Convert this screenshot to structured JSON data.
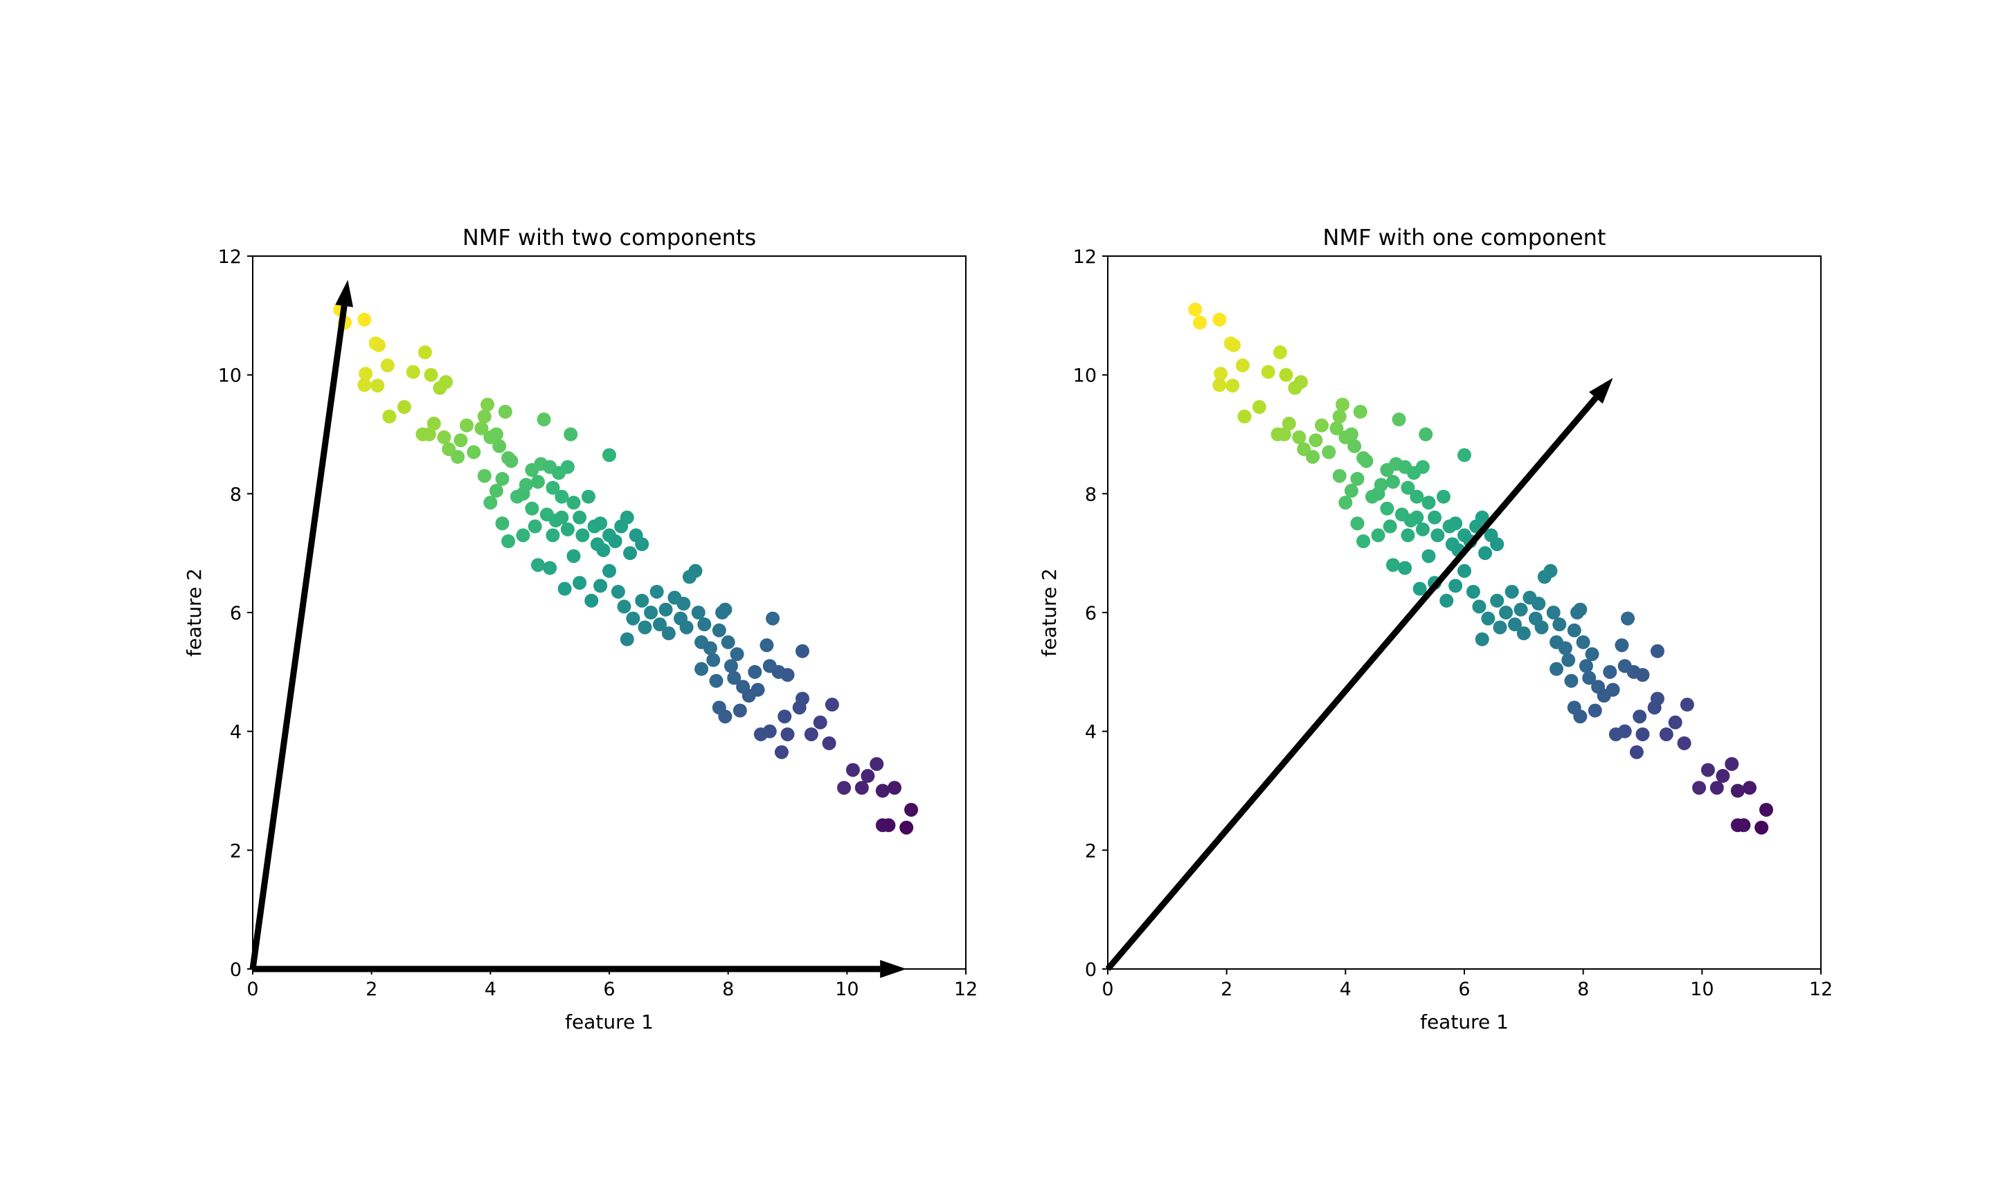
{
  "chart_data": [
    {
      "type": "scatter",
      "title": "NMF with two components",
      "xlabel": "feature 1",
      "ylabel": "feature 2",
      "xlim": [
        0,
        12
      ],
      "ylim": [
        0,
        12
      ],
      "xticks": [
        0,
        2,
        4,
        6,
        8,
        10,
        12
      ],
      "yticks": [
        0,
        2,
        4,
        6,
        8,
        10,
        12
      ],
      "grid": false,
      "colormap": "viridis",
      "arrows": [
        {
          "from": [
            0,
            0
          ],
          "to": [
            1.6,
            11.6
          ]
        },
        {
          "from": [
            0,
            0
          ],
          "to": [
            11.0,
            0
          ]
        }
      ],
      "points": [
        [
          1.47,
          11.1
        ],
        [
          1.55,
          10.88
        ],
        [
          1.88,
          10.93
        ],
        [
          2.07,
          10.53
        ],
        [
          2.12,
          10.5
        ],
        [
          1.9,
          10.02
        ],
        [
          1.88,
          9.83
        ],
        [
          2.1,
          9.82
        ],
        [
          2.27,
          10.16
        ],
        [
          2.55,
          9.46
        ],
        [
          2.3,
          9.3
        ],
        [
          2.9,
          10.38
        ],
        [
          2.7,
          10.05
        ],
        [
          3.0,
          10.0
        ],
        [
          2.86,
          9.0
        ],
        [
          2.97,
          9.0
        ],
        [
          3.15,
          9.78
        ],
        [
          3.25,
          9.88
        ],
        [
          3.05,
          9.18
        ],
        [
          3.22,
          8.95
        ],
        [
          3.3,
          8.75
        ],
        [
          3.45,
          8.62
        ],
        [
          3.5,
          8.9
        ],
        [
          3.6,
          9.15
        ],
        [
          3.72,
          8.7
        ],
        [
          3.85,
          9.1
        ],
        [
          3.9,
          9.3
        ],
        [
          3.95,
          9.5
        ],
        [
          4.0,
          8.95
        ],
        [
          4.1,
          9.0
        ],
        [
          4.15,
          8.8
        ],
        [
          4.25,
          9.38
        ],
        [
          4.3,
          8.6
        ],
        [
          3.9,
          8.3
        ],
        [
          4.0,
          7.85
        ],
        [
          4.1,
          8.05
        ],
        [
          4.2,
          8.25
        ],
        [
          4.35,
          8.55
        ],
        [
          4.45,
          7.95
        ],
        [
          4.55,
          8.0
        ],
        [
          4.6,
          8.15
        ],
        [
          4.7,
          8.4
        ],
        [
          4.8,
          8.2
        ],
        [
          4.85,
          8.5
        ],
        [
          4.9,
          9.25
        ],
        [
          5.0,
          8.45
        ],
        [
          5.05,
          8.1
        ],
        [
          5.15,
          8.35
        ],
        [
          5.2,
          7.95
        ],
        [
          5.3,
          8.45
        ],
        [
          5.35,
          9.0
        ],
        [
          4.2,
          7.5
        ],
        [
          4.3,
          7.2
        ],
        [
          4.55,
          7.3
        ],
        [
          4.7,
          7.75
        ],
        [
          4.75,
          7.45
        ],
        [
          4.8,
          6.8
        ],
        [
          4.95,
          7.65
        ],
        [
          5.05,
          7.3
        ],
        [
          5.1,
          7.55
        ],
        [
          5.2,
          7.6
        ],
        [
          5.3,
          7.4
        ],
        [
          5.4,
          7.85
        ],
        [
          5.5,
          7.6
        ],
        [
          5.55,
          7.3
        ],
        [
          5.65,
          7.95
        ],
        [
          5.75,
          7.45
        ],
        [
          5.8,
          7.15
        ],
        [
          5.85,
          7.5
        ],
        [
          5.9,
          7.05
        ],
        [
          6.0,
          8.65
        ],
        [
          6.0,
          7.3
        ],
        [
          6.1,
          7.2
        ],
        [
          6.2,
          7.45
        ],
        [
          6.3,
          7.6
        ],
        [
          6.35,
          7.0
        ],
        [
          6.45,
          7.3
        ],
        [
          6.55,
          7.15
        ],
        [
          6.0,
          6.7
        ],
        [
          5.85,
          6.45
        ],
        [
          5.7,
          6.2
        ],
        [
          5.5,
          6.5
        ],
        [
          5.4,
          6.95
        ],
        [
          5.25,
          6.4
        ],
        [
          5.0,
          6.75
        ],
        [
          6.15,
          6.35
        ],
        [
          6.25,
          6.1
        ],
        [
          6.3,
          5.55
        ],
        [
          6.4,
          5.9
        ],
        [
          6.55,
          6.2
        ],
        [
          6.6,
          5.75
        ],
        [
          6.7,
          6.0
        ],
        [
          6.8,
          6.35
        ],
        [
          6.85,
          5.8
        ],
        [
          6.95,
          6.05
        ],
        [
          7.0,
          5.65
        ],
        [
          7.1,
          6.25
        ],
        [
          7.2,
          5.9
        ],
        [
          7.25,
          6.15
        ],
        [
          7.3,
          5.75
        ],
        [
          7.35,
          6.6
        ],
        [
          7.45,
          6.7
        ],
        [
          7.5,
          6.0
        ],
        [
          7.55,
          5.5
        ],
        [
          7.6,
          5.8
        ],
        [
          7.7,
          5.4
        ],
        [
          7.75,
          5.2
        ],
        [
          7.85,
          5.7
        ],
        [
          7.9,
          6.0
        ],
        [
          7.95,
          6.05
        ],
        [
          8.0,
          5.5
        ],
        [
          8.05,
          5.1
        ],
        [
          8.1,
          4.9
        ],
        [
          8.15,
          5.3
        ],
        [
          8.25,
          4.75
        ],
        [
          8.35,
          4.6
        ],
        [
          8.45,
          5.0
        ],
        [
          8.5,
          4.7
        ],
        [
          8.65,
          5.45
        ],
        [
          8.7,
          5.1
        ],
        [
          8.75,
          5.9
        ],
        [
          8.85,
          5.0
        ],
        [
          9.0,
          4.95
        ],
        [
          9.25,
          5.35
        ],
        [
          7.55,
          5.05
        ],
        [
          7.8,
          4.85
        ],
        [
          8.2,
          4.35
        ],
        [
          7.85,
          4.4
        ],
        [
          7.95,
          4.25
        ],
        [
          8.55,
          3.95
        ],
        [
          8.7,
          4.0
        ],
        [
          8.9,
          3.65
        ],
        [
          8.95,
          4.25
        ],
        [
          9.0,
          3.95
        ],
        [
          9.2,
          4.4
        ],
        [
          9.4,
          3.95
        ],
        [
          9.55,
          4.15
        ],
        [
          9.25,
          4.55
        ],
        [
          9.75,
          4.45
        ],
        [
          9.7,
          3.8
        ],
        [
          9.95,
          3.05
        ],
        [
          10.1,
          3.35
        ],
        [
          10.25,
          3.05
        ],
        [
          10.35,
          3.25
        ],
        [
          10.5,
          3.45
        ],
        [
          10.6,
          3.0
        ],
        [
          10.6,
          2.42
        ],
        [
          10.7,
          2.42
        ],
        [
          11.0,
          2.38
        ],
        [
          11.08,
          2.68
        ],
        [
          10.8,
          3.05
        ]
      ]
    },
    {
      "type": "scatter",
      "title": "NMF with one component",
      "xlabel": "feature 1",
      "ylabel": "feature 2",
      "xlim": [
        0,
        12
      ],
      "ylim": [
        0,
        12
      ],
      "xticks": [
        0,
        2,
        4,
        6,
        8,
        10,
        12
      ],
      "yticks": [
        0,
        2,
        4,
        6,
        8,
        10,
        12
      ],
      "grid": false,
      "colormap": "viridis",
      "arrows": [
        {
          "from": [
            0,
            0
          ],
          "to": [
            8.5,
            9.95
          ]
        }
      ],
      "points": [
        [
          1.47,
          11.1
        ],
        [
          1.55,
          10.88
        ],
        [
          1.88,
          10.93
        ],
        [
          2.07,
          10.53
        ],
        [
          2.12,
          10.5
        ],
        [
          1.9,
          10.02
        ],
        [
          1.88,
          9.83
        ],
        [
          2.1,
          9.82
        ],
        [
          2.27,
          10.16
        ],
        [
          2.55,
          9.46
        ],
        [
          2.3,
          9.3
        ],
        [
          2.9,
          10.38
        ],
        [
          2.7,
          10.05
        ],
        [
          3.0,
          10.0
        ],
        [
          2.86,
          9.0
        ],
        [
          2.97,
          9.0
        ],
        [
          3.15,
          9.78
        ],
        [
          3.25,
          9.88
        ],
        [
          3.05,
          9.18
        ],
        [
          3.22,
          8.95
        ],
        [
          3.3,
          8.75
        ],
        [
          3.45,
          8.62
        ],
        [
          3.5,
          8.9
        ],
        [
          3.6,
          9.15
        ],
        [
          3.72,
          8.7
        ],
        [
          3.85,
          9.1
        ],
        [
          3.9,
          9.3
        ],
        [
          3.95,
          9.5
        ],
        [
          4.0,
          8.95
        ],
        [
          4.1,
          9.0
        ],
        [
          4.15,
          8.8
        ],
        [
          4.25,
          9.38
        ],
        [
          4.3,
          8.6
        ],
        [
          3.9,
          8.3
        ],
        [
          4.0,
          7.85
        ],
        [
          4.1,
          8.05
        ],
        [
          4.2,
          8.25
        ],
        [
          4.35,
          8.55
        ],
        [
          4.45,
          7.95
        ],
        [
          4.55,
          8.0
        ],
        [
          4.6,
          8.15
        ],
        [
          4.7,
          8.4
        ],
        [
          4.8,
          8.2
        ],
        [
          4.85,
          8.5
        ],
        [
          4.9,
          9.25
        ],
        [
          5.0,
          8.45
        ],
        [
          5.05,
          8.1
        ],
        [
          5.15,
          8.35
        ],
        [
          5.2,
          7.95
        ],
        [
          5.3,
          8.45
        ],
        [
          5.35,
          9.0
        ],
        [
          4.2,
          7.5
        ],
        [
          4.3,
          7.2
        ],
        [
          4.55,
          7.3
        ],
        [
          4.7,
          7.75
        ],
        [
          4.75,
          7.45
        ],
        [
          4.8,
          6.8
        ],
        [
          4.95,
          7.65
        ],
        [
          5.05,
          7.3
        ],
        [
          5.1,
          7.55
        ],
        [
          5.2,
          7.6
        ],
        [
          5.3,
          7.4
        ],
        [
          5.4,
          7.85
        ],
        [
          5.5,
          7.6
        ],
        [
          5.55,
          7.3
        ],
        [
          5.65,
          7.95
        ],
        [
          5.75,
          7.45
        ],
        [
          5.8,
          7.15
        ],
        [
          5.85,
          7.5
        ],
        [
          5.9,
          7.05
        ],
        [
          6.0,
          8.65
        ],
        [
          6.0,
          7.3
        ],
        [
          6.1,
          7.2
        ],
        [
          6.2,
          7.45
        ],
        [
          6.3,
          7.6
        ],
        [
          6.35,
          7.0
        ],
        [
          6.45,
          7.3
        ],
        [
          6.55,
          7.15
        ],
        [
          6.0,
          6.7
        ],
        [
          5.85,
          6.45
        ],
        [
          5.7,
          6.2
        ],
        [
          5.5,
          6.5
        ],
        [
          5.4,
          6.95
        ],
        [
          5.25,
          6.4
        ],
        [
          5.0,
          6.75
        ],
        [
          6.15,
          6.35
        ],
        [
          6.25,
          6.1
        ],
        [
          6.3,
          5.55
        ],
        [
          6.4,
          5.9
        ],
        [
          6.55,
          6.2
        ],
        [
          6.6,
          5.75
        ],
        [
          6.7,
          6.0
        ],
        [
          6.8,
          6.35
        ],
        [
          6.85,
          5.8
        ],
        [
          6.95,
          6.05
        ],
        [
          7.0,
          5.65
        ],
        [
          7.1,
          6.25
        ],
        [
          7.2,
          5.9
        ],
        [
          7.25,
          6.15
        ],
        [
          7.3,
          5.75
        ],
        [
          7.35,
          6.6
        ],
        [
          7.45,
          6.7
        ],
        [
          7.5,
          6.0
        ],
        [
          7.55,
          5.5
        ],
        [
          7.6,
          5.8
        ],
        [
          7.7,
          5.4
        ],
        [
          7.75,
          5.2
        ],
        [
          7.85,
          5.7
        ],
        [
          7.9,
          6.0
        ],
        [
          7.95,
          6.05
        ],
        [
          8.0,
          5.5
        ],
        [
          8.05,
          5.1
        ],
        [
          8.1,
          4.9
        ],
        [
          8.15,
          5.3
        ],
        [
          8.25,
          4.75
        ],
        [
          8.35,
          4.6
        ],
        [
          8.45,
          5.0
        ],
        [
          8.5,
          4.7
        ],
        [
          8.65,
          5.45
        ],
        [
          8.7,
          5.1
        ],
        [
          8.75,
          5.9
        ],
        [
          8.85,
          5.0
        ],
        [
          9.0,
          4.95
        ],
        [
          9.25,
          5.35
        ],
        [
          7.55,
          5.05
        ],
        [
          7.8,
          4.85
        ],
        [
          8.2,
          4.35
        ],
        [
          7.85,
          4.4
        ],
        [
          7.95,
          4.25
        ],
        [
          8.55,
          3.95
        ],
        [
          8.7,
          4.0
        ],
        [
          8.9,
          3.65
        ],
        [
          8.95,
          4.25
        ],
        [
          9.0,
          3.95
        ],
        [
          9.2,
          4.4
        ],
        [
          9.4,
          3.95
        ],
        [
          9.55,
          4.15
        ],
        [
          9.25,
          4.55
        ],
        [
          9.75,
          4.45
        ],
        [
          9.7,
          3.8
        ],
        [
          9.95,
          3.05
        ],
        [
          10.1,
          3.35
        ],
        [
          10.25,
          3.05
        ],
        [
          10.35,
          3.25
        ],
        [
          10.5,
          3.45
        ],
        [
          10.6,
          3.0
        ],
        [
          10.6,
          2.42
        ],
        [
          10.7,
          2.42
        ],
        [
          11.0,
          2.38
        ],
        [
          11.08,
          2.68
        ],
        [
          10.8,
          3.05
        ]
      ]
    }
  ]
}
